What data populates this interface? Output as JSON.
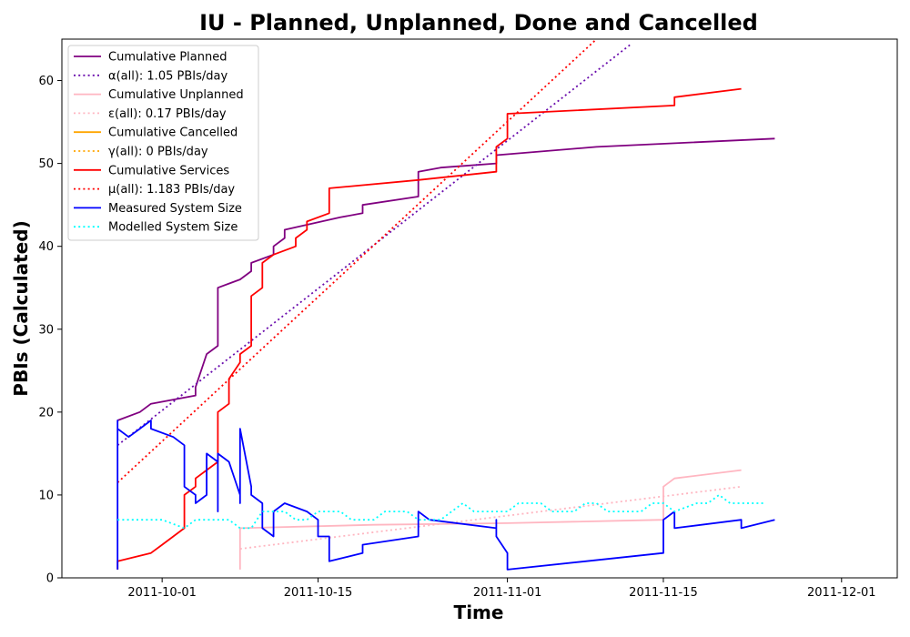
{
  "chart_data": {
    "type": "line",
    "title": "IU - Planned, Unplanned, Done  and Cancelled",
    "xlabel": "Time",
    "ylabel": "PBIs (Calculated)",
    "x_axis_type": "date",
    "xlim": [
      "2011-09-22",
      "2011-12-06"
    ],
    "ylim": [
      0,
      65
    ],
    "x_ticks": [
      "2011-10-01",
      "2011-10-15",
      "2011-11-01",
      "2011-11-15",
      "2011-12-01"
    ],
    "y_ticks": [
      0,
      10,
      20,
      30,
      40,
      50,
      60
    ],
    "grid": false,
    "legend_position": "top-left",
    "series": [
      {
        "name": "Cumulative Planned",
        "color": "#800080",
        "style": "solid",
        "points": [
          [
            "2011-09-27",
            19
          ],
          [
            "2011-09-29",
            20
          ],
          [
            "2011-09-30",
            21
          ],
          [
            "2011-10-04",
            22
          ],
          [
            "2011-10-04",
            23
          ],
          [
            "2011-10-05",
            27
          ],
          [
            "2011-10-06",
            28
          ],
          [
            "2011-10-06",
            35
          ],
          [
            "2011-10-08",
            36
          ],
          [
            "2011-10-09",
            37
          ],
          [
            "2011-10-09",
            38
          ],
          [
            "2011-10-11",
            39
          ],
          [
            "2011-10-11",
            40
          ],
          [
            "2011-10-12",
            41
          ],
          [
            "2011-10-12",
            42
          ],
          [
            "2011-10-14",
            42.6
          ],
          [
            "2011-10-17",
            43.5
          ],
          [
            "2011-10-19",
            44
          ],
          [
            "2011-10-19",
            45
          ],
          [
            "2011-10-24",
            46
          ],
          [
            "2011-10-24",
            49
          ],
          [
            "2011-10-26",
            49.5
          ],
          [
            "2011-10-31",
            50
          ],
          [
            "2011-10-31",
            51
          ],
          [
            "2011-11-09",
            52
          ],
          [
            "2011-11-25",
            53
          ]
        ]
      },
      {
        "name": "α(all): 1.05 PBIs/day",
        "color": "#6a0dad",
        "style": "dotted",
        "points": [
          [
            "2011-09-27",
            16
          ],
          [
            "2011-11-12",
            64.3
          ]
        ]
      },
      {
        "name": "Cumulative Unplanned",
        "color": "#ffb6c1",
        "style": "solid",
        "points": [
          [
            "2011-10-08",
            1
          ],
          [
            "2011-10-08",
            6
          ],
          [
            "2011-10-20",
            6.4
          ],
          [
            "2011-11-01",
            6.6
          ],
          [
            "2011-11-15",
            7
          ],
          [
            "2011-11-15",
            11
          ],
          [
            "2011-11-16",
            12
          ],
          [
            "2011-11-22",
            13
          ]
        ]
      },
      {
        "name": "ε(all): 0.17 PBIs/day",
        "color": "#ffb6c1",
        "style": "dotted",
        "points": [
          [
            "2011-10-08",
            3.5
          ],
          [
            "2011-11-22",
            11
          ]
        ]
      },
      {
        "name": "Cumulative Cancelled",
        "color": "#ffa500",
        "style": "solid",
        "points": []
      },
      {
        "name": "γ(all): 0 PBIs/day",
        "color": "#ffa500",
        "style": "dotted",
        "points": []
      },
      {
        "name": "Cumulative Services",
        "color": "#ff0000",
        "style": "solid",
        "points": [
          [
            "2011-09-27",
            1
          ],
          [
            "2011-09-27",
            2
          ],
          [
            "2011-09-30",
            3
          ],
          [
            "2011-10-01",
            4
          ],
          [
            "2011-10-02",
            5
          ],
          [
            "2011-10-03",
            6
          ],
          [
            "2011-10-03",
            10
          ],
          [
            "2011-10-04",
            11
          ],
          [
            "2011-10-04",
            12
          ],
          [
            "2011-10-05",
            13
          ],
          [
            "2011-10-06",
            14
          ],
          [
            "2011-10-06",
            20
          ],
          [
            "2011-10-07",
            21
          ],
          [
            "2011-10-07",
            24
          ],
          [
            "2011-10-08",
            26
          ],
          [
            "2011-10-08",
            27
          ],
          [
            "2011-10-09",
            28
          ],
          [
            "2011-10-09",
            33
          ],
          [
            "2011-10-09",
            34
          ],
          [
            "2011-10-10",
            35
          ],
          [
            "2011-10-10",
            38
          ],
          [
            "2011-10-11",
            39
          ],
          [
            "2011-10-13",
            40
          ],
          [
            "2011-10-13",
            41
          ],
          [
            "2011-10-14",
            42
          ],
          [
            "2011-10-14",
            43
          ],
          [
            "2011-10-16",
            44
          ],
          [
            "2011-10-16",
            47
          ],
          [
            "2011-10-24",
            48
          ],
          [
            "2011-10-31",
            49
          ],
          [
            "2011-10-31",
            52
          ],
          [
            "2011-11-01",
            53
          ],
          [
            "2011-11-01",
            55
          ],
          [
            "2011-11-01",
            56
          ],
          [
            "2011-11-16",
            57
          ],
          [
            "2011-11-16",
            58
          ],
          [
            "2011-11-22",
            59
          ]
        ]
      },
      {
        "name": "μ(all): 1.183 PBIs/day",
        "color": "#ff0000",
        "style": "dotted",
        "points": [
          [
            "2011-09-27",
            11.5
          ],
          [
            "2011-11-09",
            65
          ]
        ]
      },
      {
        "name": "Measured System Size",
        "color": "#0000ff",
        "style": "solid",
        "points": [
          [
            "2011-09-27",
            1
          ],
          [
            "2011-09-27",
            15
          ],
          [
            "2011-09-27",
            19
          ],
          [
            "2011-09-27",
            18
          ],
          [
            "2011-09-28",
            17
          ],
          [
            "2011-09-29",
            18
          ],
          [
            "2011-09-30",
            19
          ],
          [
            "2011-09-30",
            18
          ],
          [
            "2011-10-02",
            17
          ],
          [
            "2011-10-03",
            16
          ],
          [
            "2011-10-03",
            11
          ],
          [
            "2011-10-04",
            10
          ],
          [
            "2011-10-04",
            9
          ],
          [
            "2011-10-05",
            10
          ],
          [
            "2011-10-05",
            15
          ],
          [
            "2011-10-06",
            14
          ],
          [
            "2011-10-06",
            12
          ],
          [
            "2011-10-06",
            8
          ],
          [
            "2011-10-06",
            15
          ],
          [
            "2011-10-07",
            14
          ],
          [
            "2011-10-08",
            10
          ],
          [
            "2011-10-08",
            9
          ],
          [
            "2011-10-08",
            18
          ],
          [
            "2011-10-09",
            11
          ],
          [
            "2011-10-09",
            10
          ],
          [
            "2011-10-10",
            9
          ],
          [
            "2011-10-10",
            6
          ],
          [
            "2011-10-11",
            5
          ],
          [
            "2011-10-11",
            7
          ],
          [
            "2011-10-11",
            8
          ],
          [
            "2011-10-12",
            9
          ],
          [
            "2011-10-14",
            8
          ],
          [
            "2011-10-15",
            7
          ],
          [
            "2011-10-15",
            5
          ],
          [
            "2011-10-16",
            5
          ],
          [
            "2011-10-16",
            2
          ],
          [
            "2011-10-19",
            3
          ],
          [
            "2011-10-19",
            4
          ],
          [
            "2011-10-24",
            5
          ],
          [
            "2011-10-24",
            8
          ],
          [
            "2011-10-25",
            7
          ],
          [
            "2011-10-31",
            6
          ],
          [
            "2011-10-31",
            7
          ],
          [
            "2011-10-31",
            5
          ],
          [
            "2011-11-01",
            3
          ],
          [
            "2011-11-01",
            1
          ],
          [
            "2011-11-08",
            2
          ],
          [
            "2011-11-15",
            3
          ],
          [
            "2011-11-15",
            7
          ],
          [
            "2011-11-16",
            8
          ],
          [
            "2011-11-16",
            6
          ],
          [
            "2011-11-22",
            7
          ],
          [
            "2011-11-22",
            6
          ],
          [
            "2011-11-25",
            7
          ]
        ]
      },
      {
        "name": "Modelled System Size",
        "color": "#00ffff",
        "style": "dotted",
        "points": [
          [
            "2011-09-27",
            7
          ],
          [
            "2011-10-01",
            7
          ],
          [
            "2011-10-02",
            6.5
          ],
          [
            "2011-10-03",
            6
          ],
          [
            "2011-10-04",
            7
          ],
          [
            "2011-10-07",
            7
          ],
          [
            "2011-10-08",
            6
          ],
          [
            "2011-10-09",
            6
          ],
          [
            "2011-10-10",
            8
          ],
          [
            "2011-10-12",
            8
          ],
          [
            "2011-10-13",
            7
          ],
          [
            "2011-10-14",
            7
          ],
          [
            "2011-10-15",
            8
          ],
          [
            "2011-10-17",
            8
          ],
          [
            "2011-10-18",
            7
          ],
          [
            "2011-10-20",
            7
          ],
          [
            "2011-10-21",
            8
          ],
          [
            "2011-10-23",
            8
          ],
          [
            "2011-10-24",
            7
          ],
          [
            "2011-10-26",
            7
          ],
          [
            "2011-10-27",
            8
          ],
          [
            "2011-10-28",
            9
          ],
          [
            "2011-10-29",
            8
          ],
          [
            "2011-11-01",
            8
          ],
          [
            "2011-11-02",
            9
          ],
          [
            "2011-11-04",
            9
          ],
          [
            "2011-11-05",
            8
          ],
          [
            "2011-11-07",
            8
          ],
          [
            "2011-11-08",
            9
          ],
          [
            "2011-11-09",
            9
          ],
          [
            "2011-11-10",
            8
          ],
          [
            "2011-11-13",
            8
          ],
          [
            "2011-11-14",
            9
          ],
          [
            "2011-11-15",
            9
          ],
          [
            "2011-11-16",
            8
          ],
          [
            "2011-11-18",
            9
          ],
          [
            "2011-11-19",
            9
          ],
          [
            "2011-11-20",
            10
          ],
          [
            "2011-11-21",
            9
          ],
          [
            "2011-11-24",
            9
          ]
        ]
      }
    ]
  }
}
